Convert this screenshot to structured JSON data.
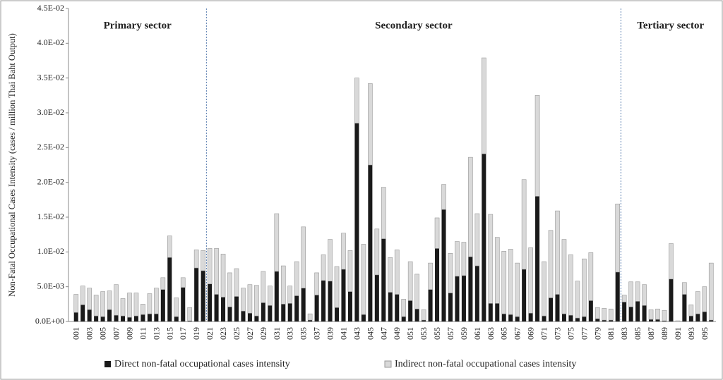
{
  "chart_data": {
    "type": "stacked_bar",
    "y_label": "Non-Fatal Occupational Cases Intensity  (cases / million Thai Baht Output)",
    "annotations": [
      "Primary sector",
      "Secondary sector",
      "Tertiary sector"
    ],
    "categories": [
      "001",
      null,
      "003",
      null,
      "005",
      null,
      "007",
      null,
      "009",
      null,
      "011",
      null,
      "013",
      null,
      "015",
      null,
      "017",
      null,
      "019",
      null,
      "021",
      null,
      "023",
      null,
      "025",
      null,
      "027",
      null,
      "029",
      null,
      "031",
      null,
      "033",
      null,
      "035",
      null,
      "037",
      null,
      "039",
      null,
      "041",
      null,
      "043",
      null,
      "045",
      null,
      "047",
      null,
      "049",
      null,
      "051",
      null,
      "053",
      null,
      "055",
      null,
      "057",
      null,
      "059",
      null,
      "061",
      null,
      "063",
      null,
      "065",
      null,
      "067",
      null,
      "069",
      null,
      "071",
      null,
      "073",
      null,
      "075",
      null,
      "077",
      null,
      "079",
      null,
      "081",
      null,
      "083",
      null,
      "085",
      null,
      "087",
      null,
      "089",
      null,
      "091",
      null,
      "093",
      null,
      "095",
      null
    ],
    "series": [
      {
        "name": "Direct non-fatal occupational cases intensity",
        "color": "#1a1a1a",
        "values": [
          0.0013,
          0.0024,
          0.0017,
          0.0008,
          0.0007,
          0.0017,
          0.0009,
          0.0008,
          0.0006,
          0.0008,
          0.001,
          0.0011,
          0.0011,
          0.0046,
          0.0092,
          0.0007,
          0.0049,
          0.0001,
          0.0077,
          0.0073,
          0.0054,
          0.0039,
          0.0035,
          0.0021,
          0.0036,
          0.0015,
          0.0012,
          0.0008,
          0.0027,
          0.0023,
          0.0072,
          0.0025,
          0.0026,
          0.0037,
          0.0048,
          0.0002,
          0.0038,
          0.0059,
          0.0058,
          0.002,
          0.0075,
          0.0043,
          0.0285,
          0.001,
          0.0225,
          0.0067,
          0.0119,
          0.0042,
          0.0039,
          0.0007,
          0.003,
          0.0018,
          0.0002,
          0.0046,
          0.0105,
          0.0161,
          0.0041,
          0.0065,
          0.0066,
          0.0093,
          0.008,
          0.0241,
          0.0026,
          0.0026,
          0.0011,
          0.001,
          0.0007,
          0.0075,
          0.0012,
          0.018,
          0.0008,
          0.0034,
          0.0039,
          0.0011,
          0.0009,
          0.0005,
          0.0007,
          0.003,
          0.0004,
          0.0002,
          0.0002,
          0.0071,
          0.0028,
          0.0021,
          0.0029,
          0.0023,
          0.0003,
          0.0003,
          0.0001,
          0.0061,
          0,
          0.0039,
          0.0008,
          0.0011,
          0.0014,
          0.0002
        ]
      },
      {
        "name": "Indirect non-fatal occupational cases intensity",
        "color": "#d9d9d9",
        "values": [
          0.0026,
          0.0027,
          0.0031,
          0.003,
          0.0036,
          0.0027,
          0.0044,
          0.0025,
          0.0035,
          0.0033,
          0.0015,
          0.0029,
          0.0037,
          0.0017,
          0.0031,
          0.0027,
          0.0014,
          0.0019,
          0.0026,
          0.0029,
          0.0051,
          0.0066,
          0.0062,
          0.0049,
          0.004,
          0.0033,
          0.0041,
          0.0044,
          0.0045,
          0.0028,
          0.0083,
          0.0055,
          0.0025,
          0.0049,
          0.0088,
          0.0009,
          0.0032,
          0.0037,
          0.006,
          0.0059,
          0.0052,
          0.0059,
          0.0065,
          0.0101,
          0.0117,
          0.0066,
          0.0074,
          0.005,
          0.0064,
          0.0025,
          0.0056,
          0.005,
          0.0015,
          0.0038,
          0.0044,
          0.0036,
          0.0057,
          0.005,
          0.0048,
          0.0143,
          0.0075,
          0.0138,
          0.0128,
          0.0095,
          0.009,
          0.0094,
          0.0077,
          0.0129,
          0.0094,
          0.0145,
          0.0078,
          0.0097,
          0.012,
          0.0107,
          0.0087,
          0.0053,
          0.0083,
          0.0069,
          0.0016,
          0.0017,
          0.0016,
          0.0098,
          0.001,
          0.0036,
          0.0028,
          0.003,
          0.0014,
          0.0015,
          0.0015,
          0.0051,
          0.0001,
          0.0017,
          0.0016,
          0.0032,
          0.0036,
          0.0082
        ]
      }
    ],
    "ylim": [
      0,
      0.045
    ],
    "yticks": [
      {
        "value": 0,
        "label": "0.0E+00"
      },
      {
        "value": 0.005,
        "label": "5.0E-03"
      },
      {
        "value": 0.01,
        "label": "1.0E-02"
      },
      {
        "value": 0.015,
        "label": "1.5E-02"
      },
      {
        "value": 0.02,
        "label": "2.0E-02"
      },
      {
        "value": 0.025,
        "label": "2.5E-02"
      },
      {
        "value": 0.03,
        "label": "3.0E-02"
      },
      {
        "value": 0.035,
        "label": "3.5E-02"
      },
      {
        "value": 0.04,
        "label": "4.0E-02"
      },
      {
        "value": 0.045,
        "label": "4.5E-02"
      }
    ],
    "grid": false,
    "legend": "bottom"
  }
}
